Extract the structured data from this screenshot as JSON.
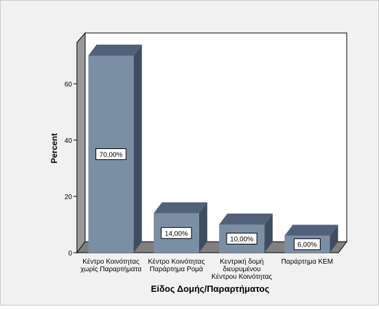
{
  "chart_data": {
    "type": "bar",
    "xlabel": "Είδος Δομής/Παραρτήματος",
    "ylabel": "Percent",
    "ylim": [
      0,
      70
    ],
    "yticks": [
      0,
      20,
      40,
      60
    ],
    "grid": false,
    "three_d": true,
    "categories": [
      [
        "Κέντρο Κοινότητας",
        "χωρίς Παραρτήματα"
      ],
      [
        "Κέντρο Κοινότητας",
        "Παράρτημα Ρομά"
      ],
      [
        "Κεντρική δομή",
        "διευρυμένου",
        "Κέντρου Κοινότητας"
      ],
      [
        "Παράρτημα ΚΕΜ"
      ]
    ],
    "values": [
      70,
      14,
      10,
      6
    ],
    "data_labels": [
      "70,00%",
      "14,00%",
      "10,00%",
      "6,00%"
    ],
    "colors": {
      "bar_front": "#7b8fa4",
      "bar_top": "#50627a",
      "bar_side": "#3f4d60",
      "background": "#f1f1f1",
      "plot_back": "#ffffff",
      "wall_side": "#9a9a9a",
      "floor": "#808080"
    }
  }
}
